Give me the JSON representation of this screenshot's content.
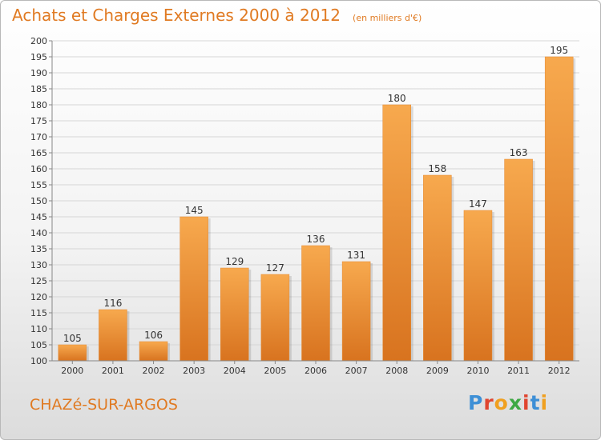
{
  "header": {
    "title": "Achats et Charges Externes 2000 à 2012",
    "subtitle": "(en milliers d'€)"
  },
  "footer": {
    "town": "CHAZé-SUR-ARGOS",
    "logo": "Proxiti"
  },
  "colors": {
    "bar_light": "#f7a94e",
    "bar_dark": "#d8731f",
    "accent": "#e07a22",
    "logo_letters": [
      "#3d8fd6",
      "#e0452f",
      "#f0a020",
      "#3da843",
      "#e0452f",
      "#3d8fd6",
      "#f0a020"
    ]
  },
  "chart_data": {
    "type": "bar",
    "categories": [
      "2000",
      "2001",
      "2002",
      "2003",
      "2004",
      "2005",
      "2006",
      "2007",
      "2008",
      "2009",
      "2010",
      "2011",
      "2012"
    ],
    "values": [
      105,
      116,
      106,
      145,
      129,
      127,
      136,
      131,
      180,
      158,
      147,
      163,
      195
    ],
    "ylim": [
      100,
      200
    ],
    "ytick_step": 5,
    "grid": true,
    "data_labels": true
  }
}
